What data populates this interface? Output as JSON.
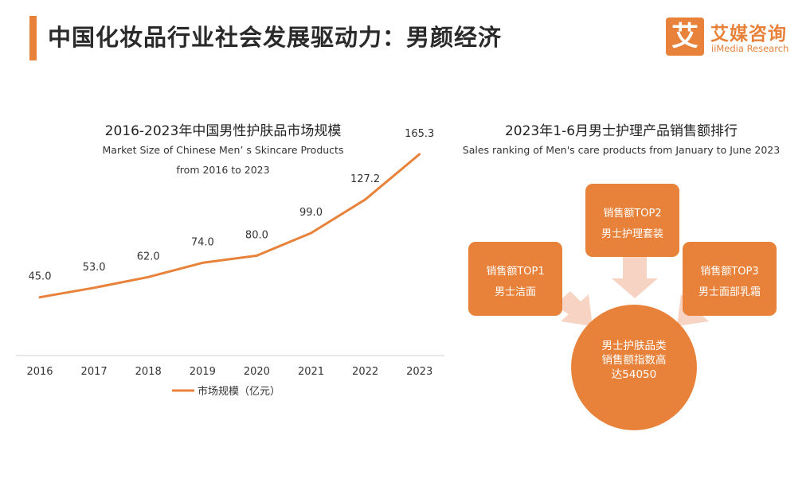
{
  "header": {
    "title": "中国化妆品行业社会发展驱动力：男颜经济"
  },
  "logo": {
    "mark": "艾",
    "name_cn": "艾媒咨询",
    "name_en": "iiMedia Research"
  },
  "colors": {
    "accent": "#E8823A",
    "arrow": "#F6D3C3"
  },
  "left_panel": {
    "title": "2016-2023年中国男性护肤品市场规模",
    "subtitle_line1": "Market Size of Chinese Men’ s Skincare Products",
    "subtitle_line2": "from 2016 to 2023"
  },
  "chart_data": {
    "type": "line",
    "title": "2016-2023年中国男性护肤品市场规模",
    "subtitle": "Market Size of Chinese Men’ s Skincare Products from 2016 to 2023",
    "categories": [
      "2016",
      "2017",
      "2018",
      "2019",
      "2020",
      "2021",
      "2022",
      "2023"
    ],
    "series": [
      {
        "name": "市场规模（亿元）",
        "values": [
          45.0,
          53.0,
          62.0,
          74.0,
          80.0,
          99.0,
          127.2,
          165.3
        ]
      }
    ],
    "value_labels": [
      "45.0",
      "53.0",
      "62.0",
      "74.0",
      "80.0",
      "99.0",
      "127.2",
      "165.3"
    ],
    "xlabel": "",
    "ylabel": "",
    "ylim": [
      0,
      200
    ],
    "grid": false,
    "legend": "bottom"
  },
  "right_panel": {
    "title": "2023年1-6月男士护理产品销售额排行",
    "subtitle": "Sales ranking of Men's care products from January to June 2023",
    "top1": {
      "rank": "销售额TOP1",
      "product": "男士洁面"
    },
    "top2": {
      "rank": "销售额TOP2",
      "product": "男士护理套装"
    },
    "top3": {
      "rank": "销售额TOP3",
      "product": "男士面部乳霜"
    },
    "center": {
      "line1": "男士护肤品类",
      "line2": "销售额指数高",
      "line3": "达54050"
    }
  }
}
